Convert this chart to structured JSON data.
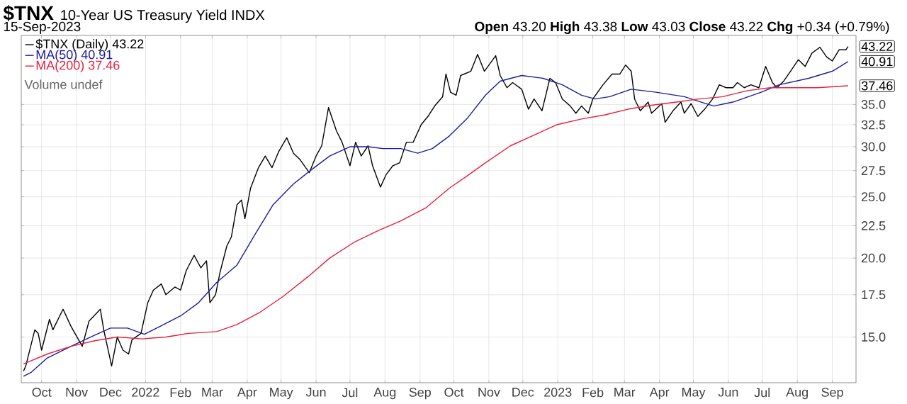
{
  "chart_data": {
    "type": "line",
    "title": "$TNX",
    "subtitle": "10-Year US Treasury Yield INDX",
    "annotations": [
      "15-Sep-2023",
      "**Open** 43.20  **High** 43.38  **Low** 43.03  **Close** 43.22  **Chg** +0.34 (+0.79%)",
      "Volume undef",
      {
        "text": "43.22",
        "x": "2023-09-15",
        "y": 43.22
      },
      {
        "text": "40.91",
        "x": "2023-09-15",
        "y": 40.91
      },
      {
        "text": "37.46",
        "x": "2023-09-15",
        "y": 37.46
      }
    ],
    "log": "y",
    "grid": true,
    "legend": "top left",
    "xlim": [
      "2021-09-13",
      "2023-09-22"
    ],
    "xticks": [
      {
        "value": "2021-10-01",
        "label": "Oct"
      },
      {
        "value": "2021-11-01",
        "label": "Nov"
      },
      {
        "value": "2021-12-01",
        "label": "Dec"
      },
      {
        "value": "2022-01-01",
        "label": "2022"
      },
      {
        "value": "2022-02-01",
        "label": "Feb"
      },
      {
        "value": "2022-03-01",
        "label": "Mar"
      },
      {
        "value": "2022-04-01",
        "label": "Apr"
      },
      {
        "value": "2022-05-01",
        "label": "May"
      },
      {
        "value": "2022-06-01",
        "label": "Jun"
      },
      {
        "value": "2022-07-01",
        "label": "Jul"
      },
      {
        "value": "2022-08-01",
        "label": "Aug"
      },
      {
        "value": "2022-09-01",
        "label": "Sep"
      },
      {
        "value": "2022-10-01",
        "label": "Oct"
      },
      {
        "value": "2022-11-01",
        "label": "Nov"
      },
      {
        "value": "2022-12-01",
        "label": "Dec"
      },
      {
        "value": "2023-01-01",
        "label": "2023"
      },
      {
        "value": "2023-02-01",
        "label": "Feb"
      },
      {
        "value": "2023-03-01",
        "label": "Mar"
      },
      {
        "value": "2023-04-01",
        "label": "Apr"
      },
      {
        "value": "2023-05-01",
        "label": "May"
      },
      {
        "value": "2023-06-01",
        "label": "Jun"
      },
      {
        "value": "2023-07-01",
        "label": "Jul"
      },
      {
        "value": "2023-08-01",
        "label": "Aug"
      },
      {
        "value": "2023-09-01",
        "label": "Sep"
      }
    ],
    "ylim": [
      12.7,
      45
    ],
    "yticks": [
      {
        "value": 15,
        "label": "15.0"
      },
      {
        "value": 17.5,
        "label": "17.5"
      },
      {
        "value": 20,
        "label": "20.0"
      },
      {
        "value": 22.5,
        "label": "22.5"
      },
      {
        "value": 25,
        "label": "25.0"
      },
      {
        "value": 27.5,
        "label": "27.5"
      },
      {
        "value": 30,
        "label": "30.0"
      },
      {
        "value": 32.5,
        "label": "32.5"
      },
      {
        "value": 35,
        "label": "35.0"
      }
    ],
    "series": [
      {
        "name": "$TNX (Daily) 43.22",
        "color": "#000000",
        "x": [
          "2021-09-15",
          "2021-09-17",
          "2021-09-25",
          "2021-09-28",
          "2021-10-01",
          "2021-10-08",
          "2021-10-11",
          "2021-10-20",
          "2021-10-27",
          "2021-11-06",
          "2021-11-12",
          "2021-11-22",
          "2021-11-25",
          "2021-12-02",
          "2021-12-07",
          "2021-12-12",
          "2021-12-17",
          "2021-12-20",
          "2021-12-28",
          "2022-01-03",
          "2022-01-08",
          "2022-01-15",
          "2022-01-19",
          "2022-01-27",
          "2022-02-01",
          "2022-02-06",
          "2022-02-13",
          "2022-02-19",
          "2022-02-24",
          "2022-02-27",
          "2022-03-04",
          "2022-03-08",
          "2022-03-14",
          "2022-03-18",
          "2022-03-23",
          "2022-03-27",
          "2022-03-30",
          "2022-04-04",
          "2022-04-11",
          "2022-04-17",
          "2022-04-23",
          "2022-04-29",
          "2022-05-06",
          "2022-05-12",
          "2022-05-18",
          "2022-05-26",
          "2022-06-01",
          "2022-06-06",
          "2022-06-12",
          "2022-06-19",
          "2022-06-24",
          "2022-07-01",
          "2022-07-06",
          "2022-07-11",
          "2022-07-17",
          "2022-07-21",
          "2022-07-28",
          "2022-08-02",
          "2022-08-08",
          "2022-08-14",
          "2022-08-20",
          "2022-08-26",
          "2022-09-02",
          "2022-09-08",
          "2022-09-14",
          "2022-09-21",
          "2022-09-24",
          "2022-09-28",
          "2022-10-03",
          "2022-10-07",
          "2022-10-16",
          "2022-10-22",
          "2022-10-28",
          "2022-11-07",
          "2022-11-11",
          "2022-11-17",
          "2022-11-22",
          "2022-11-30",
          "2022-12-06",
          "2022-12-11",
          "2022-12-18",
          "2022-12-25",
          "2022-12-30",
          "2023-01-05",
          "2023-01-12",
          "2023-01-17",
          "2023-01-22",
          "2023-01-28",
          "2023-02-01",
          "2023-02-10",
          "2023-02-18",
          "2023-02-25",
          "2023-03-02",
          "2023-03-07",
          "2023-03-10",
          "2023-03-15",
          "2023-03-22",
          "2023-03-25",
          "2023-04-03",
          "2023-04-06",
          "2023-04-13",
          "2023-04-20",
          "2023-04-23",
          "2023-04-29",
          "2023-05-05",
          "2023-05-11",
          "2023-05-18",
          "2023-05-24",
          "2023-05-30",
          "2023-06-05",
          "2023-06-09",
          "2023-06-15",
          "2023-06-21",
          "2023-06-28",
          "2023-07-04",
          "2023-07-10",
          "2023-07-14",
          "2023-07-20",
          "2023-07-26",
          "2023-08-02",
          "2023-08-08",
          "2023-08-14",
          "2023-08-21",
          "2023-08-27",
          "2023-09-01",
          "2023-09-07",
          "2023-09-13",
          "2023-09-15"
        ],
        "values": [
          13.25,
          13.5,
          15.4,
          15.2,
          14.3,
          16.0,
          15.4,
          16.6,
          15.6,
          14.5,
          15.9,
          16.6,
          15.4,
          13.5,
          15.0,
          14.3,
          14.1,
          14.85,
          15.2,
          17.0,
          17.8,
          18.2,
          17.5,
          18.0,
          17.8,
          19.1,
          20.2,
          19.3,
          19.8,
          17.0,
          17.5,
          19.0,
          20.9,
          21.6,
          24.3,
          24.7,
          23.1,
          25.8,
          27.8,
          29.0,
          27.8,
          29.5,
          31.0,
          29.3,
          28.6,
          27.3,
          29.0,
          30.1,
          34.6,
          31.8,
          30.5,
          28.0,
          30.5,
          29.0,
          30.1,
          28.0,
          25.9,
          27.1,
          28.0,
          28.3,
          30.5,
          30.5,
          32.5,
          33.5,
          34.8,
          36.0,
          39.1,
          36.6,
          36.2,
          38.9,
          39.5,
          42.0,
          39.5,
          41.8,
          38.9,
          37.2,
          37.9,
          37.0,
          34.4,
          35.7,
          34.2,
          38.5,
          37.9,
          35.7,
          34.8,
          33.9,
          34.8,
          33.9,
          35.7,
          37.6,
          39.1,
          39.1,
          40.4,
          39.5,
          35.7,
          34.2,
          35.3,
          33.9,
          35.1,
          32.8,
          34.2,
          35.3,
          33.9,
          35.1,
          33.5,
          34.4,
          35.7,
          37.6,
          37.2,
          37.2,
          37.9,
          37.2,
          37.6,
          37.2,
          40.2,
          37.9,
          37.2,
          38.1,
          39.5,
          41.2,
          40.2,
          42.2,
          43.1,
          41.6,
          41.0,
          42.7,
          42.7,
          43.22
        ]
      },
      {
        "name": "MA(50) 40.91",
        "color": "#1c1c9c",
        "x": [
          "2021-09-15",
          "2021-09-22",
          "2021-10-06",
          "2021-10-27",
          "2021-11-17",
          "2021-12-01",
          "2021-12-16",
          "2021-12-31",
          "2022-01-14",
          "2022-02-01",
          "2022-02-17",
          "2022-03-05",
          "2022-03-23",
          "2022-04-08",
          "2022-04-24",
          "2022-05-12",
          "2022-05-28",
          "2022-06-13",
          "2022-07-01",
          "2022-07-17",
          "2022-07-30",
          "2022-08-15",
          "2022-08-30",
          "2022-09-12",
          "2022-09-27",
          "2022-10-13",
          "2022-10-29",
          "2022-11-11",
          "2022-11-30",
          "2022-12-19",
          "2023-01-05",
          "2023-01-22",
          "2023-02-03",
          "2023-02-16",
          "2023-03-07",
          "2023-03-29",
          "2023-04-23",
          "2023-05-08",
          "2023-05-19",
          "2023-06-05",
          "2023-06-30",
          "2023-07-16",
          "2023-08-11",
          "2023-09-01",
          "2023-09-15"
        ],
        "values": [
          13.0,
          13.2,
          13.9,
          14.5,
          15.1,
          15.5,
          15.5,
          15.15,
          15.6,
          16.2,
          17.0,
          18.3,
          19.5,
          21.8,
          24.3,
          26.2,
          27.6,
          29.0,
          30.0,
          30.0,
          29.8,
          29.8,
          29.3,
          29.8,
          31.2,
          33.3,
          36.2,
          38.1,
          38.9,
          38.5,
          37.6,
          36.2,
          35.7,
          36.0,
          37.0,
          36.6,
          36.0,
          35.3,
          34.8,
          35.3,
          36.6,
          37.6,
          38.5,
          39.5,
          40.91
        ]
      },
      {
        "name": "MA(200) 37.46",
        "color": "#e8203c",
        "x": [
          "2021-09-15",
          "2021-10-06",
          "2021-10-27",
          "2021-11-17",
          "2021-12-07",
          "2021-12-29",
          "2022-01-19",
          "2022-02-08",
          "2022-03-05",
          "2022-03-23",
          "2022-04-12",
          "2022-05-03",
          "2022-05-25",
          "2022-06-13",
          "2022-07-05",
          "2022-07-26",
          "2022-08-15",
          "2022-09-06",
          "2022-09-27",
          "2022-10-13",
          "2022-10-29",
          "2022-11-20",
          "2022-12-11",
          "2022-12-31",
          "2023-01-22",
          "2023-02-12",
          "2023-03-04",
          "2023-03-25",
          "2023-04-16",
          "2023-05-06",
          "2023-05-27",
          "2023-06-18",
          "2023-07-08",
          "2023-07-29",
          "2023-08-19",
          "2023-09-15"
        ],
        "values": [
          13.6,
          14.1,
          14.5,
          14.8,
          15.0,
          14.9,
          15.0,
          15.2,
          15.3,
          15.7,
          16.4,
          17.4,
          18.7,
          20.0,
          21.2,
          22.1,
          22.9,
          24.0,
          25.8,
          27.0,
          28.3,
          30.1,
          31.3,
          32.5,
          33.2,
          33.7,
          34.4,
          34.9,
          35.3,
          35.7,
          36.0,
          36.8,
          37.2,
          37.2,
          37.2,
          37.46
        ]
      }
    ]
  }
}
